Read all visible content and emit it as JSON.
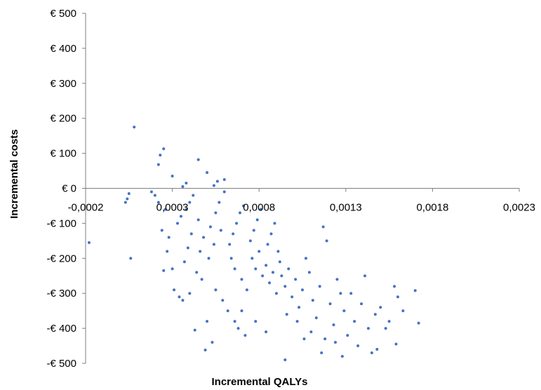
{
  "chart_data": {
    "type": "scatter",
    "title": "",
    "xlabel": "Incremental QALYs",
    "ylabel": "Incremental costs",
    "xlim": [
      -0.0002,
      0.0023
    ],
    "ylim": [
      -500,
      500
    ],
    "x_ticks": [
      {
        "value": -0.0002,
        "label": "-0,0002"
      },
      {
        "value": 0.0003,
        "label": "0,0003"
      },
      {
        "value": 0.0008,
        "label": "0,0008"
      },
      {
        "value": 0.0013,
        "label": "0,0013"
      },
      {
        "value": 0.0018,
        "label": "0,0018"
      },
      {
        "value": 0.0023,
        "label": "0,0023"
      }
    ],
    "y_ticks": [
      {
        "value": 500,
        "label": "€ 500"
      },
      {
        "value": 400,
        "label": "€ 400"
      },
      {
        "value": 300,
        "label": "€ 300"
      },
      {
        "value": 200,
        "label": "€ 200"
      },
      {
        "value": 100,
        "label": "€ 100"
      },
      {
        "value": 0,
        "label": "€ 0"
      },
      {
        "value": -100,
        "label": "-€ 100"
      },
      {
        "value": -200,
        "label": "-€ 200"
      },
      {
        "value": -300,
        "label": "-€ 300"
      },
      {
        "value": -400,
        "label": "-€ 400"
      },
      {
        "value": -500,
        "label": "-€ 500"
      }
    ],
    "grid": false,
    "marker_color": "#4472C4",
    "points": [
      {
        "x": 8e-05,
        "y": 175
      },
      {
        "x": 0.00025,
        "y": 113
      },
      {
        "x": 0.00023,
        "y": 95
      },
      {
        "x": 0.00022,
        "y": 68
      },
      {
        "x": 0.00045,
        "y": 82
      },
      {
        "x": 0.0005,
        "y": 45
      },
      {
        "x": 0.0006,
        "y": 25
      },
      {
        "x": 0.00056,
        "y": 20
      },
      {
        "x": 0.00054,
        "y": 8
      },
      {
        "x": 0.00038,
        "y": 15
      },
      {
        "x": 0.00036,
        "y": 5
      },
      {
        "x": 0.0003,
        "y": 35
      },
      {
        "x": 0.00018,
        "y": -10
      },
      {
        "x": 5e-05,
        "y": -15
      },
      {
        "x": 4e-05,
        "y": -30
      },
      {
        "x": 3e-05,
        "y": -40
      },
      {
        "x": -0.00018,
        "y": -155
      },
      {
        "x": 6e-05,
        "y": -200
      },
      {
        "x": 0.0002,
        "y": -20
      },
      {
        "x": 0.00022,
        "y": -40
      },
      {
        "x": 0.00026,
        "y": -60
      },
      {
        "x": 0.00024,
        "y": -120
      },
      {
        "x": 0.00028,
        "y": -140
      },
      {
        "x": 0.00027,
        "y": -180
      },
      {
        "x": 0.00025,
        "y": -235
      },
      {
        "x": 0.0003,
        "y": -230
      },
      {
        "x": 0.00031,
        "y": -290
      },
      {
        "x": 0.00034,
        "y": -310
      },
      {
        "x": 0.00036,
        "y": -320
      },
      {
        "x": 0.0004,
        "y": -300
      },
      {
        "x": 0.00043,
        "y": -405
      },
      {
        "x": 0.0005,
        "y": -380
      },
      {
        "x": 0.00053,
        "y": -440
      },
      {
        "x": 0.00049,
        "y": -462
      },
      {
        "x": 0.00033,
        "y": -100
      },
      {
        "x": 0.00035,
        "y": -80
      },
      {
        "x": 0.00038,
        "y": -60
      },
      {
        "x": 0.0004,
        "y": -40
      },
      {
        "x": 0.00042,
        "y": -20
      },
      {
        "x": 0.00045,
        "y": -90
      },
      {
        "x": 0.00041,
        "y": -130
      },
      {
        "x": 0.00039,
        "y": -170
      },
      {
        "x": 0.00037,
        "y": -210
      },
      {
        "x": 0.00044,
        "y": -240
      },
      {
        "x": 0.00046,
        "y": -180
      },
      {
        "x": 0.00048,
        "y": -140
      },
      {
        "x": 0.00052,
        "y": -110
      },
      {
        "x": 0.00055,
        "y": -70
      },
      {
        "x": 0.00057,
        "y": -40
      },
      {
        "x": 0.0006,
        "y": -10
      },
      {
        "x": 0.00058,
        "y": -120
      },
      {
        "x": 0.00054,
        "y": -160
      },
      {
        "x": 0.00051,
        "y": -200
      },
      {
        "x": 0.00047,
        "y": -260
      },
      {
        "x": 0.00055,
        "y": -290
      },
      {
        "x": 0.00059,
        "y": -320
      },
      {
        "x": 0.00062,
        "y": -350
      },
      {
        "x": 0.00066,
        "y": -380
      },
      {
        "x": 0.00068,
        "y": -400
      },
      {
        "x": 0.00072,
        "y": -420
      },
      {
        "x": 0.00063,
        "y": -160
      },
      {
        "x": 0.00065,
        "y": -130
      },
      {
        "x": 0.00067,
        "y": -100
      },
      {
        "x": 0.00069,
        "y": -70
      },
      {
        "x": 0.00071,
        "y": -50
      },
      {
        "x": 0.00064,
        "y": -200
      },
      {
        "x": 0.00066,
        "y": -230
      },
      {
        "x": 0.0007,
        "y": -260
      },
      {
        "x": 0.00073,
        "y": -290
      },
      {
        "x": 0.00075,
        "y": -150
      },
      {
        "x": 0.00077,
        "y": -120
      },
      {
        "x": 0.00079,
        "y": -90
      },
      {
        "x": 0.00081,
        "y": -60
      },
      {
        "x": 0.00076,
        "y": -200
      },
      {
        "x": 0.00078,
        "y": -230
      },
      {
        "x": 0.0008,
        "y": -180
      },
      {
        "x": 0.00082,
        "y": -250
      },
      {
        "x": 0.00084,
        "y": -220
      },
      {
        "x": 0.00086,
        "y": -270
      },
      {
        "x": 0.00088,
        "y": -240
      },
      {
        "x": 0.0009,
        "y": -300
      },
      {
        "x": 0.00092,
        "y": -210
      },
      {
        "x": 0.00085,
        "y": -160
      },
      {
        "x": 0.00087,
        "y": -130
      },
      {
        "x": 0.00089,
        "y": -100
      },
      {
        "x": 0.00091,
        "y": -180
      },
      {
        "x": 0.00093,
        "y": -250
      },
      {
        "x": 0.00095,
        "y": -280
      },
      {
        "x": 0.00097,
        "y": -230
      },
      {
        "x": 0.00099,
        "y": -310
      },
      {
        "x": 0.00101,
        "y": -260
      },
      {
        "x": 0.00103,
        "y": -340
      },
      {
        "x": 0.00105,
        "y": -290
      },
      {
        "x": 0.00107,
        "y": -200
      },
      {
        "x": 0.00109,
        "y": -240
      },
      {
        "x": 0.00111,
        "y": -320
      },
      {
        "x": 0.00113,
        "y": -370
      },
      {
        "x": 0.00115,
        "y": -280
      },
      {
        "x": 0.00117,
        "y": -110
      },
      {
        "x": 0.00119,
        "y": -150
      },
      {
        "x": 0.00121,
        "y": -330
      },
      {
        "x": 0.00123,
        "y": -390
      },
      {
        "x": 0.00125,
        "y": -260
      },
      {
        "x": 0.00127,
        "y": -300
      },
      {
        "x": 0.00129,
        "y": -350
      },
      {
        "x": 0.00131,
        "y": -420
      },
      {
        "x": 0.00133,
        "y": -300
      },
      {
        "x": 0.00135,
        "y": -380
      },
      {
        "x": 0.00137,
        "y": -450
      },
      {
        "x": 0.00139,
        "y": -330
      },
      {
        "x": 0.00141,
        "y": -250
      },
      {
        "x": 0.00143,
        "y": -400
      },
      {
        "x": 0.00145,
        "y": -470
      },
      {
        "x": 0.00147,
        "y": -360
      },
      {
        "x": 0.0015,
        "y": -340
      },
      {
        "x": 0.00153,
        "y": -400
      },
      {
        "x": 0.00155,
        "y": -380
      },
      {
        "x": 0.00158,
        "y": -280
      },
      {
        "x": 0.0016,
        "y": -310
      },
      {
        "x": 0.00163,
        "y": -350
      },
      {
        "x": 0.0017,
        "y": -292
      },
      {
        "x": 0.00172,
        "y": -385
      },
      {
        "x": 0.00159,
        "y": -445
      },
      {
        "x": 0.00148,
        "y": -460
      },
      {
        "x": 0.00128,
        "y": -480
      },
      {
        "x": 0.00116,
        "y": -470
      },
      {
        "x": 0.00095,
        "y": -490
      },
      {
        "x": 0.00106,
        "y": -430
      },
      {
        "x": 0.00084,
        "y": -410
      },
      {
        "x": 0.00078,
        "y": -380
      },
      {
        "x": 0.0007,
        "y": -350
      },
      {
        "x": 0.00102,
        "y": -380
      },
      {
        "x": 0.0011,
        "y": -410
      },
      {
        "x": 0.00118,
        "y": -430
      },
      {
        "x": 0.00124,
        "y": -440
      },
      {
        "x": 0.00096,
        "y": -360
      }
    ]
  }
}
